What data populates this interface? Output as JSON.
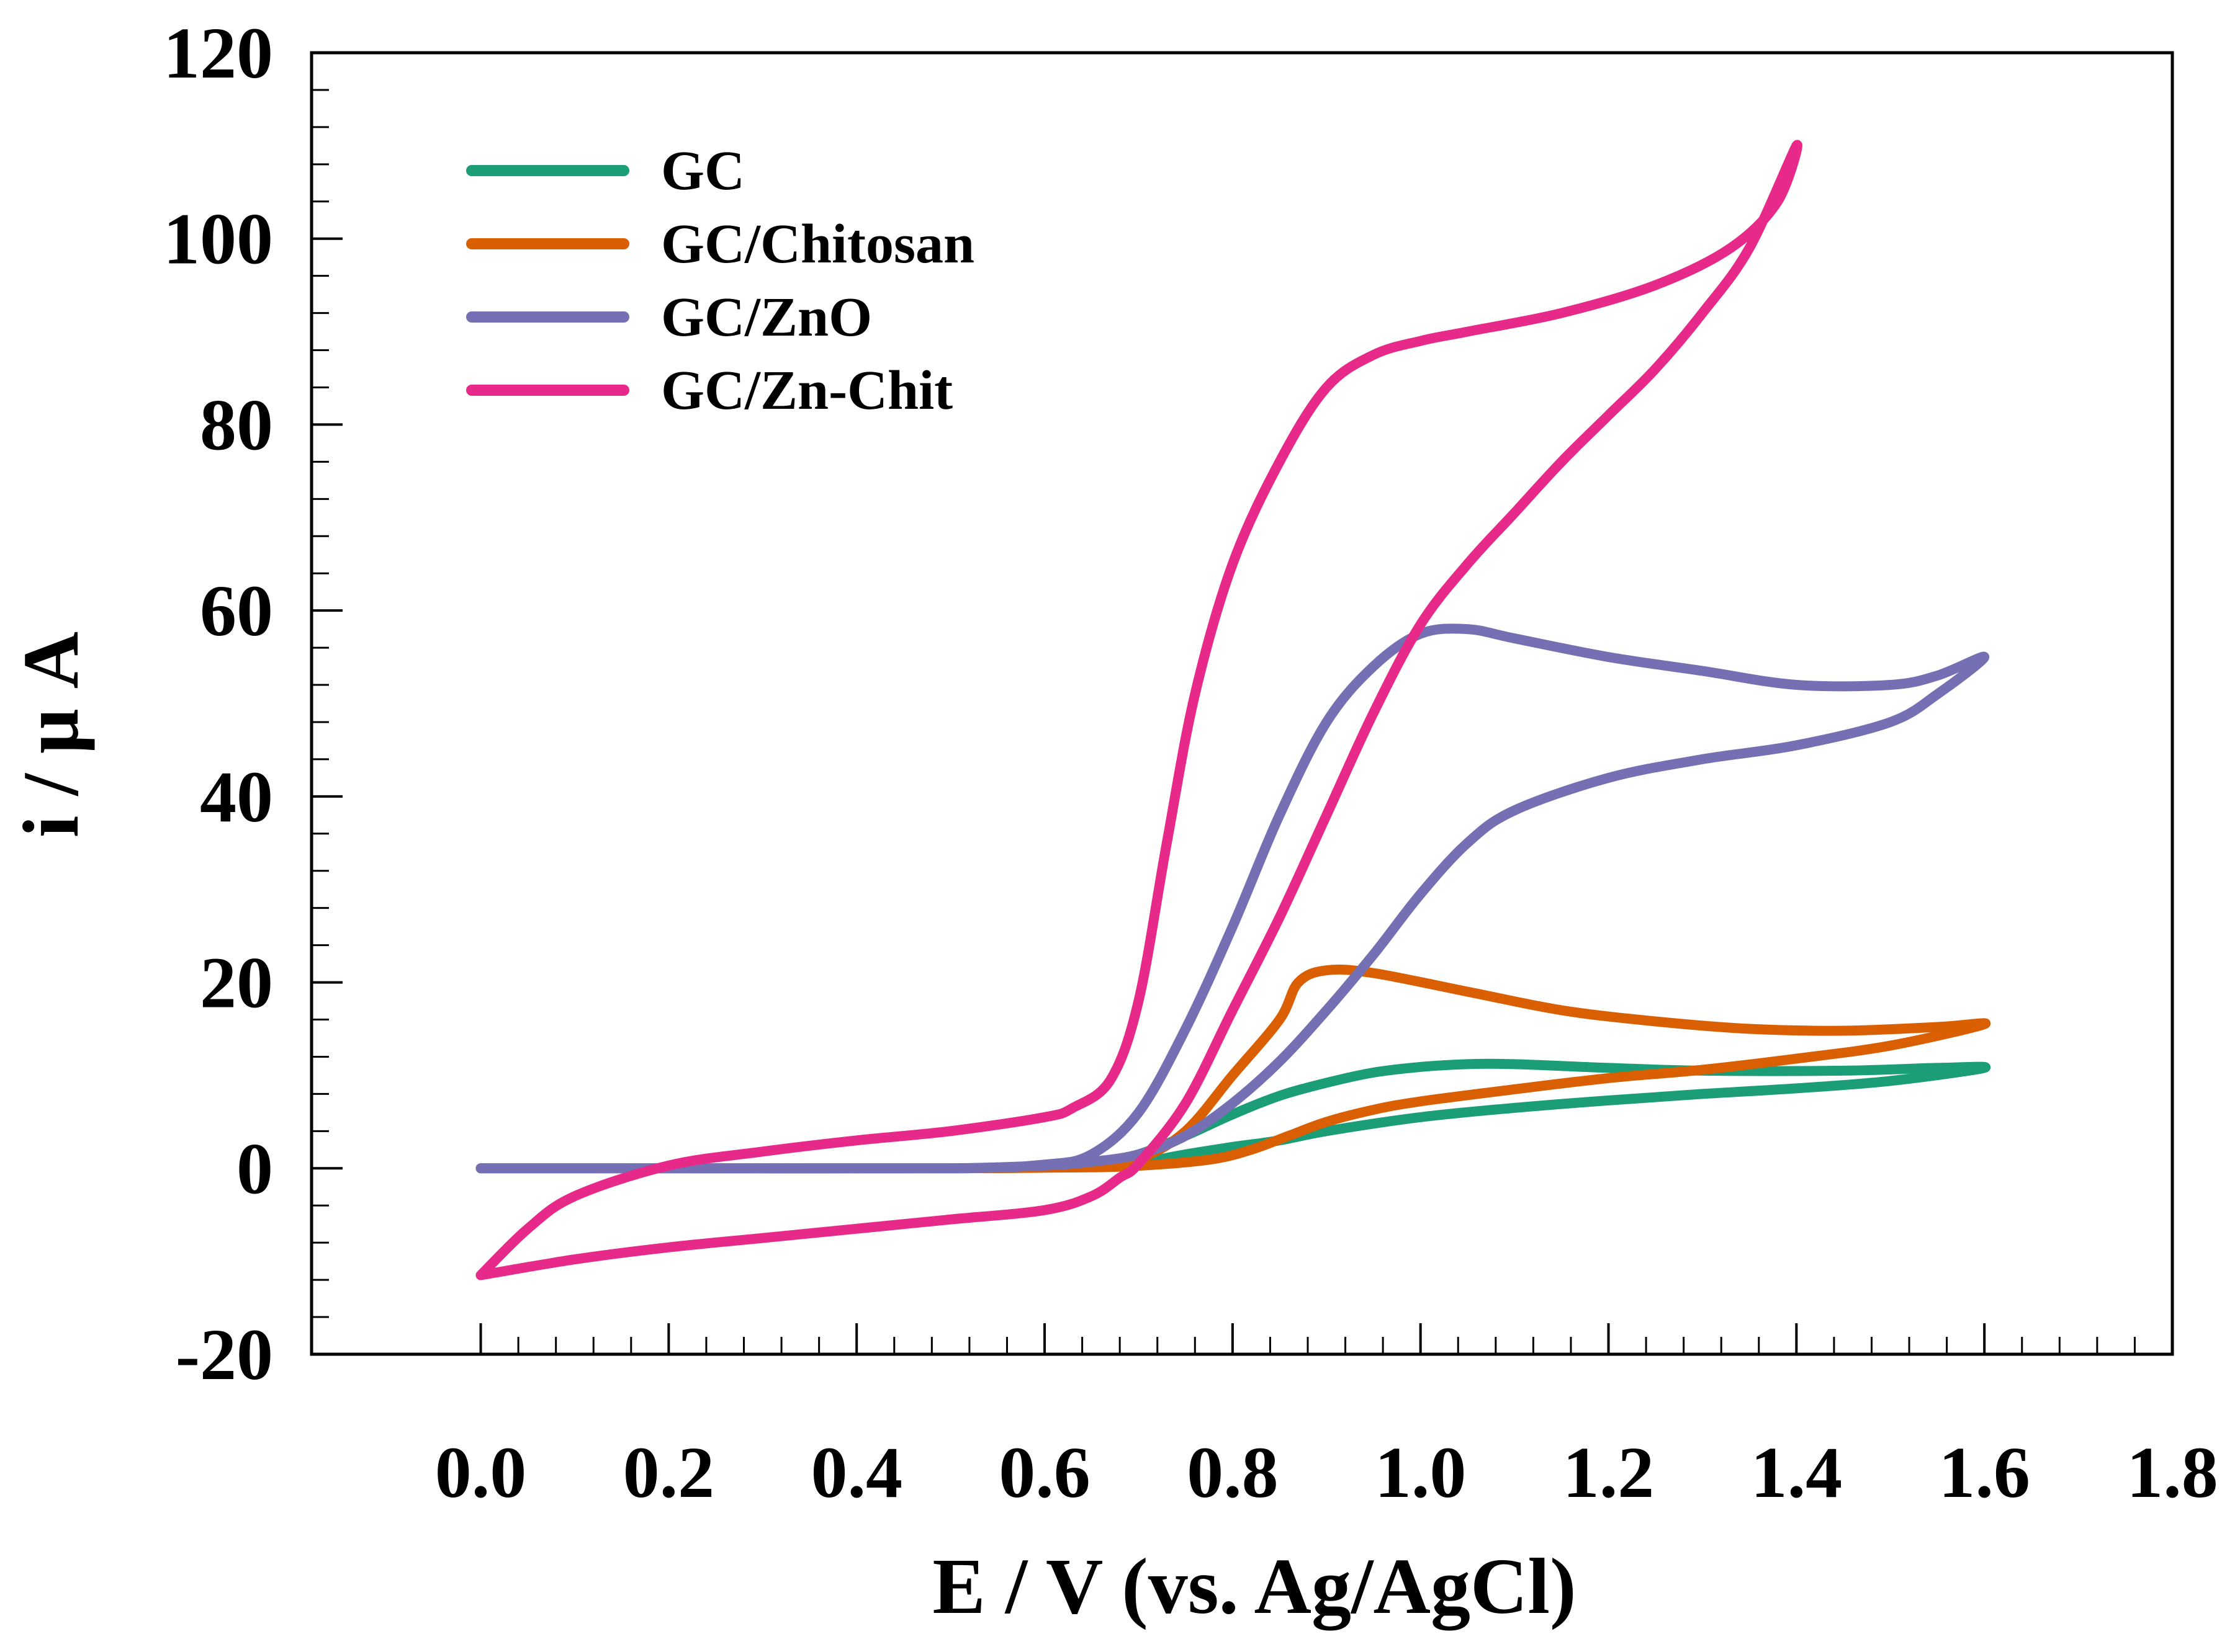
{
  "chart_data": {
    "type": "line",
    "title": "",
    "xlabel": "E / V (vs. Ag/AgCl)",
    "ylabel": "i / μ A",
    "xlim": [
      -0.18,
      1.8
    ],
    "ylim": [
      -20,
      120
    ],
    "x_ticks": [
      0.0,
      0.2,
      0.4,
      0.6,
      0.8,
      1.0,
      1.2,
      1.4,
      1.6,
      1.8
    ],
    "x_tick_labels": [
      "0.0",
      "0.2",
      "0.4",
      "0.6",
      "0.8",
      "1.0",
      "1.2",
      "1.4",
      "1.6",
      "1.8"
    ],
    "y_ticks": [
      -20,
      0,
      20,
      40,
      60,
      80,
      100,
      120
    ],
    "y_tick_labels": [
      "-20",
      "0",
      "20",
      "40",
      "60",
      "80",
      "100",
      "120"
    ],
    "x_minor_step": 0.04,
    "y_minor_step": 4,
    "grid": false,
    "legend_position": "top-left",
    "series": [
      {
        "name": "GC",
        "color": "#1b9e77",
        "points": [
          [
            0.0,
            0
          ],
          [
            0.3,
            0
          ],
          [
            0.5,
            0
          ],
          [
            0.65,
            0.2
          ],
          [
            0.7,
            0.6
          ],
          [
            0.75,
            1.5
          ],
          [
            0.8,
            2.3
          ],
          [
            0.85,
            3.0
          ],
          [
            0.9,
            4.0
          ],
          [
            1.0,
            5.5
          ],
          [
            1.1,
            6.5
          ],
          [
            1.2,
            7.3
          ],
          [
            1.3,
            8.0
          ],
          [
            1.4,
            8.6
          ],
          [
            1.5,
            9.4
          ],
          [
            1.6,
            10.8
          ],
          [
            1.55,
            10.8
          ],
          [
            1.45,
            10.5
          ],
          [
            1.3,
            10.5
          ],
          [
            1.2,
            10.8
          ],
          [
            1.1,
            11.2
          ],
          [
            1.05,
            11.2
          ],
          [
            1.0,
            10.9
          ],
          [
            0.95,
            10.3
          ],
          [
            0.9,
            9.2
          ],
          [
            0.85,
            7.8
          ],
          [
            0.8,
            5.8
          ],
          [
            0.75,
            3.5
          ],
          [
            0.7,
            1.5
          ],
          [
            0.65,
            0.3
          ],
          [
            0.5,
            0
          ],
          [
            0.2,
            0
          ],
          [
            0.0,
            0
          ]
        ]
      },
      {
        "name": "GC/Chitosan",
        "color": "#d95f02",
        "points": [
          [
            0.0,
            0
          ],
          [
            0.3,
            0
          ],
          [
            0.5,
            0
          ],
          [
            0.65,
            0.1
          ],
          [
            0.72,
            0.4
          ],
          [
            0.78,
            1.0
          ],
          [
            0.82,
            2.0
          ],
          [
            0.86,
            3.5
          ],
          [
            0.9,
            5.0
          ],
          [
            0.95,
            6.3
          ],
          [
            1.0,
            7.2
          ],
          [
            1.1,
            8.5
          ],
          [
            1.2,
            9.7
          ],
          [
            1.3,
            10.6
          ],
          [
            1.4,
            11.8
          ],
          [
            1.5,
            13.2
          ],
          [
            1.6,
            15.5
          ],
          [
            1.55,
            15.2
          ],
          [
            1.45,
            14.8
          ],
          [
            1.35,
            15.0
          ],
          [
            1.25,
            15.8
          ],
          [
            1.15,
            17.0
          ],
          [
            1.05,
            19.0
          ],
          [
            0.95,
            21.0
          ],
          [
            0.9,
            21.3
          ],
          [
            0.87,
            20.0
          ],
          [
            0.85,
            16.0
          ],
          [
            0.8,
            10.0
          ],
          [
            0.75,
            4.0
          ],
          [
            0.7,
            1.0
          ],
          [
            0.65,
            0.2
          ],
          [
            0.5,
            0
          ],
          [
            0.2,
            0
          ],
          [
            0.0,
            0
          ]
        ]
      },
      {
        "name": "GC/ZnO",
        "color": "#7570b3",
        "points": [
          [
            0.0,
            0
          ],
          [
            0.3,
            0
          ],
          [
            0.5,
            0
          ],
          [
            0.6,
            0.3
          ],
          [
            0.65,
            0.7
          ],
          [
            0.7,
            1.5
          ],
          [
            0.75,
            3.5
          ],
          [
            0.8,
            7.0
          ],
          [
            0.85,
            11.5
          ],
          [
            0.9,
            17.0
          ],
          [
            0.95,
            23.0
          ],
          [
            1.0,
            29.5
          ],
          [
            1.05,
            35.0
          ],
          [
            1.1,
            38.5
          ],
          [
            1.2,
            42.0
          ],
          [
            1.3,
            44.0
          ],
          [
            1.4,
            45.5
          ],
          [
            1.5,
            48.0
          ],
          [
            1.55,
            51.0
          ],
          [
            1.6,
            55.0
          ],
          [
            1.55,
            53.0
          ],
          [
            1.5,
            52.0
          ],
          [
            1.4,
            52.0
          ],
          [
            1.3,
            53.5
          ],
          [
            1.2,
            55.0
          ],
          [
            1.1,
            57.0
          ],
          [
            1.05,
            58.0
          ],
          [
            1.0,
            57.5
          ],
          [
            0.95,
            54.0
          ],
          [
            0.9,
            48.0
          ],
          [
            0.85,
            38.0
          ],
          [
            0.8,
            26.0
          ],
          [
            0.75,
            15.0
          ],
          [
            0.7,
            6.0
          ],
          [
            0.65,
            1.5
          ],
          [
            0.6,
            0.4
          ],
          [
            0.5,
            0
          ],
          [
            0.2,
            0
          ],
          [
            0.0,
            0
          ]
        ]
      },
      {
        "name": "GC/Zn-Chit",
        "color": "#e7298a",
        "points": [
          [
            0.0,
            -11.5
          ],
          [
            0.1,
            -9.8
          ],
          [
            0.2,
            -8.5
          ],
          [
            0.3,
            -7.5
          ],
          [
            0.4,
            -6.5
          ],
          [
            0.5,
            -5.5
          ],
          [
            0.6,
            -4.5
          ],
          [
            0.65,
            -3.0
          ],
          [
            0.68,
            -1.0
          ],
          [
            0.7,
            0.5
          ],
          [
            0.75,
            7.0
          ],
          [
            0.8,
            17.0
          ],
          [
            0.85,
            27.0
          ],
          [
            0.9,
            38.0
          ],
          [
            0.95,
            49.0
          ],
          [
            1.0,
            58.5
          ],
          [
            1.05,
            65.0
          ],
          [
            1.1,
            70.5
          ],
          [
            1.15,
            76.0
          ],
          [
            1.2,
            81.0
          ],
          [
            1.25,
            86.0
          ],
          [
            1.3,
            92.0
          ],
          [
            1.35,
            99.0
          ],
          [
            1.4,
            110.0
          ],
          [
            1.38,
            104.0
          ],
          [
            1.33,
            99.0
          ],
          [
            1.25,
            95.0
          ],
          [
            1.15,
            92.0
          ],
          [
            1.05,
            90.0
          ],
          [
            1.0,
            89.0
          ],
          [
            0.95,
            87.5
          ],
          [
            0.9,
            84.0
          ],
          [
            0.85,
            76.0
          ],
          [
            0.8,
            65.0
          ],
          [
            0.76,
            51.0
          ],
          [
            0.73,
            35.0
          ],
          [
            0.7,
            18.0
          ],
          [
            0.67,
            9.5
          ],
          [
            0.63,
            6.5
          ],
          [
            0.6,
            5.5
          ],
          [
            0.5,
            4.0
          ],
          [
            0.4,
            3.0
          ],
          [
            0.3,
            1.8
          ],
          [
            0.2,
            0.3
          ],
          [
            0.1,
            -3.0
          ],
          [
            0.05,
            -6.5
          ],
          [
            0.0,
            -11.5
          ]
        ]
      }
    ]
  }
}
